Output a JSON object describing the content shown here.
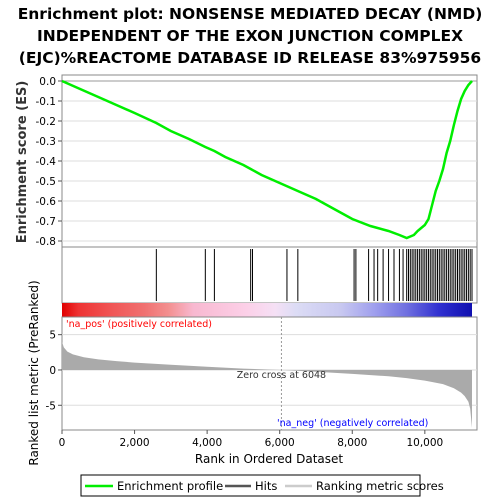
{
  "chart_data": {
    "type": "line",
    "title_lines": [
      "Enrichment plot: NONSENSE MEDIATED DECAY (NMD)",
      "INDEPENDENT OF THE EXON JUNCTION COMPLEX",
      "(EJC)%REACTOME DATABASE ID RELEASE 83%975956"
    ],
    "es_panel": {
      "ylabel": "Enrichment score (ES)",
      "ylim": [
        -0.83,
        0.03
      ],
      "yticks": [
        0.0,
        -0.1,
        -0.2,
        -0.3,
        -0.4,
        -0.5,
        -0.6,
        -0.7,
        -0.8
      ],
      "ytick_labels": [
        "0.0",
        "-0.1",
        "-0.2",
        "-0.3",
        "-0.4",
        "-0.5",
        "-0.6",
        "-0.7",
        "-0.8"
      ],
      "grid": true,
      "series": [
        {
          "name": "Enrichment profile",
          "color": "#00ee00",
          "x": [
            0,
            500,
            1000,
            1500,
            2000,
            2600,
            3000,
            3500,
            3950,
            4200,
            4500,
            5000,
            5200,
            5500,
            6000,
            6500,
            7000,
            7500,
            8000,
            8500,
            9000,
            9300,
            9500,
            9700,
            9800,
            9900,
            10000,
            10100,
            10200,
            10300,
            10400,
            10500,
            10600,
            10700,
            10800,
            10900,
            11000,
            11100,
            11200,
            11300
          ],
          "y": [
            0.0,
            -0.04,
            -0.08,
            -0.12,
            -0.16,
            -0.21,
            -0.25,
            -0.29,
            -0.33,
            -0.35,
            -0.38,
            -0.42,
            -0.44,
            -0.47,
            -0.51,
            -0.55,
            -0.59,
            -0.64,
            -0.69,
            -0.725,
            -0.75,
            -0.77,
            -0.785,
            -0.77,
            -0.75,
            -0.735,
            -0.72,
            -0.69,
            -0.62,
            -0.55,
            -0.5,
            -0.44,
            -0.36,
            -0.3,
            -0.22,
            -0.15,
            -0.09,
            -0.05,
            -0.02,
            0.0
          ]
        }
      ]
    },
    "hits_panel": {
      "hit_positions": [
        2600,
        3950,
        4200,
        5200,
        5250,
        6200,
        6500,
        8050,
        8100,
        8450,
        8600,
        8700,
        8850,
        9000,
        9150,
        9300,
        9400,
        9500,
        9550,
        9600,
        9650,
        9700,
        9750,
        9800,
        9850,
        9900,
        9950,
        10000,
        10050,
        10100,
        10150,
        10200,
        10250,
        10300,
        10350,
        10400,
        10450,
        10500,
        10550,
        10600,
        10650,
        10700,
        10750,
        10800,
        10850,
        10900,
        10950,
        11000,
        11050,
        11100,
        11150,
        11200,
        11250,
        11300
      ],
      "label_pos": "'na_pos' (positively correlated)",
      "label_neg": "'na_neg' (negatively correlated)",
      "label_pos_color": "#ff0000",
      "label_neg_color": "#0000ff"
    },
    "rank_panel": {
      "ylabel": "Ranked list metric (PreRanked)",
      "xlabel": "Rank in Ordered Dataset",
      "ylim": [
        -8.5,
        7.5
      ],
      "yticks": [
        5,
        0,
        -5
      ],
      "ytick_labels": [
        "5",
        "0",
        "-5"
      ],
      "xlim": [
        0,
        12000
      ],
      "xticks": [
        0,
        2000,
        4000,
        6000,
        8000,
        10000
      ],
      "xtick_labels": [
        "0",
        "2,000",
        "4,000",
        "6,000",
        "8,000",
        "10,000"
      ],
      "zero_cross_label": "Zero cross at 6048",
      "zero_cross": 6048,
      "metric_profile": {
        "x": [
          0,
          50,
          150,
          300,
          600,
          1000,
          1500,
          2000,
          3000,
          4000,
          5000,
          6048,
          7000,
          8000,
          9000,
          9500,
          10000,
          10500,
          10800,
          11000,
          11100,
          11200,
          11250,
          11300
        ],
        "y": [
          4.0,
          3.2,
          2.6,
          2.2,
          1.8,
          1.5,
          1.25,
          1.05,
          0.75,
          0.45,
          0.2,
          0.0,
          -0.25,
          -0.55,
          -0.9,
          -1.15,
          -1.5,
          -2.0,
          -2.6,
          -3.2,
          -3.7,
          -4.5,
          -5.5,
          -8.2
        ]
      },
      "fill_color": "#aaaaaa"
    },
    "legend": {
      "items": [
        {
          "label": "Enrichment profile",
          "color": "#00ee00"
        },
        {
          "label": "Hits",
          "color": "#555555"
        },
        {
          "label": "Ranking metric scores",
          "color": "#cccccc"
        }
      ]
    }
  }
}
